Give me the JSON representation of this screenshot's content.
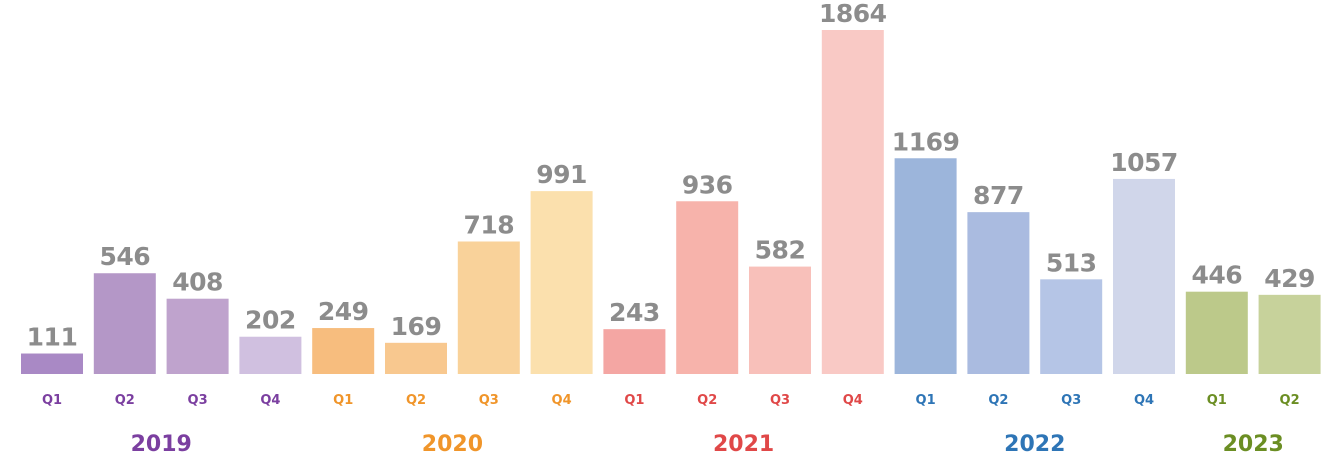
{
  "chart_data": {
    "type": "bar",
    "series": [
      {
        "name": "2019",
        "color": "#7b3fa0",
        "categories": [
          "Q1",
          "Q2",
          "Q3",
          "Q4"
        ],
        "values": [
          111,
          546,
          408,
          202
        ],
        "colors": [
          "#a989c5",
          "#b497c7",
          "#bfa3cd",
          "#d0c0e0"
        ]
      },
      {
        "name": "2020",
        "color": "#f0952a",
        "categories": [
          "Q1",
          "Q2",
          "Q3",
          "Q4"
        ],
        "values": [
          249,
          169,
          718,
          991
        ],
        "colors": [
          "#f7bd7e",
          "#f8c88f",
          "#f9d29a",
          "#fbe0ad"
        ]
      },
      {
        "name": "2021",
        "color": "#e04848",
        "categories": [
          "Q1",
          "Q2",
          "Q3",
          "Q4"
        ],
        "values": [
          243,
          936,
          582,
          1864
        ],
        "colors": [
          "#f4a6a3",
          "#f7b3ab",
          "#f8c0ba",
          "#f9c9c5"
        ]
      },
      {
        "name": "2022",
        "color": "#2e75b6",
        "categories": [
          "Q1",
          "Q2",
          "Q3",
          "Q4"
        ],
        "values": [
          1169,
          877,
          513,
          1057
        ],
        "colors": [
          "#9cb5db",
          "#aabbe0",
          "#b5c5e6",
          "#d0d6ea"
        ]
      },
      {
        "name": "2023",
        "color": "#6b8e23",
        "categories": [
          "Q1",
          "Q2"
        ],
        "values": [
          446,
          429
        ],
        "colors": [
          "#bcc98a",
          "#c7d29b"
        ]
      }
    ]
  }
}
